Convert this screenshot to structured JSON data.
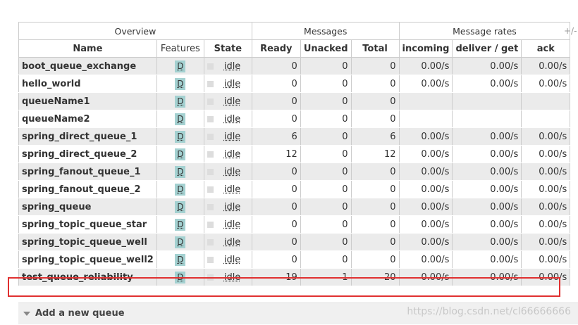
{
  "table": {
    "group_headers": {
      "overview": "Overview",
      "messages": "Messages",
      "rates": "Message rates"
    },
    "columns": {
      "name": "Name",
      "features": "Features",
      "state": "State",
      "ready": "Ready",
      "unacked": "Unacked",
      "total": "Total",
      "incoming": "incoming",
      "deliver_get": "deliver / get",
      "ack": "ack"
    },
    "toggle_columns": "+/-",
    "rows": [
      {
        "name": "boot_queue_exchange",
        "feature": "D",
        "state": "idle",
        "ready": "0",
        "unacked": "0",
        "total": "0",
        "incoming": "0.00/s",
        "deliver_get": "0.00/s",
        "ack": "0.00/s"
      },
      {
        "name": "hello_world",
        "feature": "D",
        "state": "idle",
        "ready": "0",
        "unacked": "0",
        "total": "0",
        "incoming": "0.00/s",
        "deliver_get": "0.00/s",
        "ack": "0.00/s"
      },
      {
        "name": "queueName1",
        "feature": "D",
        "state": "idle",
        "ready": "0",
        "unacked": "0",
        "total": "0",
        "incoming": "",
        "deliver_get": "",
        "ack": ""
      },
      {
        "name": "queueName2",
        "feature": "D",
        "state": "idle",
        "ready": "0",
        "unacked": "0",
        "total": "0",
        "incoming": "",
        "deliver_get": "",
        "ack": ""
      },
      {
        "name": "spring_direct_queue_1",
        "feature": "D",
        "state": "idle",
        "ready": "6",
        "unacked": "0",
        "total": "6",
        "incoming": "0.00/s",
        "deliver_get": "0.00/s",
        "ack": "0.00/s"
      },
      {
        "name": "spring_direct_queue_2",
        "feature": "D",
        "state": "idle",
        "ready": "12",
        "unacked": "0",
        "total": "12",
        "incoming": "0.00/s",
        "deliver_get": "0.00/s",
        "ack": "0.00/s"
      },
      {
        "name": "spring_fanout_queue_1",
        "feature": "D",
        "state": "idle",
        "ready": "0",
        "unacked": "0",
        "total": "0",
        "incoming": "0.00/s",
        "deliver_get": "0.00/s",
        "ack": "0.00/s"
      },
      {
        "name": "spring_fanout_queue_2",
        "feature": "D",
        "state": "idle",
        "ready": "0",
        "unacked": "0",
        "total": "0",
        "incoming": "0.00/s",
        "deliver_get": "0.00/s",
        "ack": "0.00/s"
      },
      {
        "name": "spring_queue",
        "feature": "D",
        "state": "idle",
        "ready": "0",
        "unacked": "0",
        "total": "0",
        "incoming": "0.00/s",
        "deliver_get": "0.00/s",
        "ack": "0.00/s"
      },
      {
        "name": "spring_topic_queue_star",
        "feature": "D",
        "state": "idle",
        "ready": "0",
        "unacked": "0",
        "total": "0",
        "incoming": "0.00/s",
        "deliver_get": "0.00/s",
        "ack": "0.00/s"
      },
      {
        "name": "spring_topic_queue_well",
        "feature": "D",
        "state": "idle",
        "ready": "0",
        "unacked": "0",
        "total": "0",
        "incoming": "0.00/s",
        "deliver_get": "0.00/s",
        "ack": "0.00/s"
      },
      {
        "name": "spring_topic_queue_well2",
        "feature": "D",
        "state": "idle",
        "ready": "0",
        "unacked": "0",
        "total": "0",
        "incoming": "0.00/s",
        "deliver_get": "0.00/s",
        "ack": "0.00/s"
      },
      {
        "name": "test_queue_reliability",
        "feature": "D",
        "state": "idle",
        "ready": "19",
        "unacked": "1",
        "total": "20",
        "incoming": "0.00/s",
        "deliver_get": "0.00/s",
        "ack": "0.00/s"
      }
    ]
  },
  "add_queue": {
    "label": "Add a new queue"
  },
  "watermark": "https://blog.csdn.net/cl66666666",
  "colors": {
    "highlight": "#e03030",
    "badge": "#a4d1d1",
    "row_alt": "#ebebeb"
  },
  "icons": {
    "collapse": "triangle-down-icon",
    "state_indicator": "state-square-icon"
  }
}
